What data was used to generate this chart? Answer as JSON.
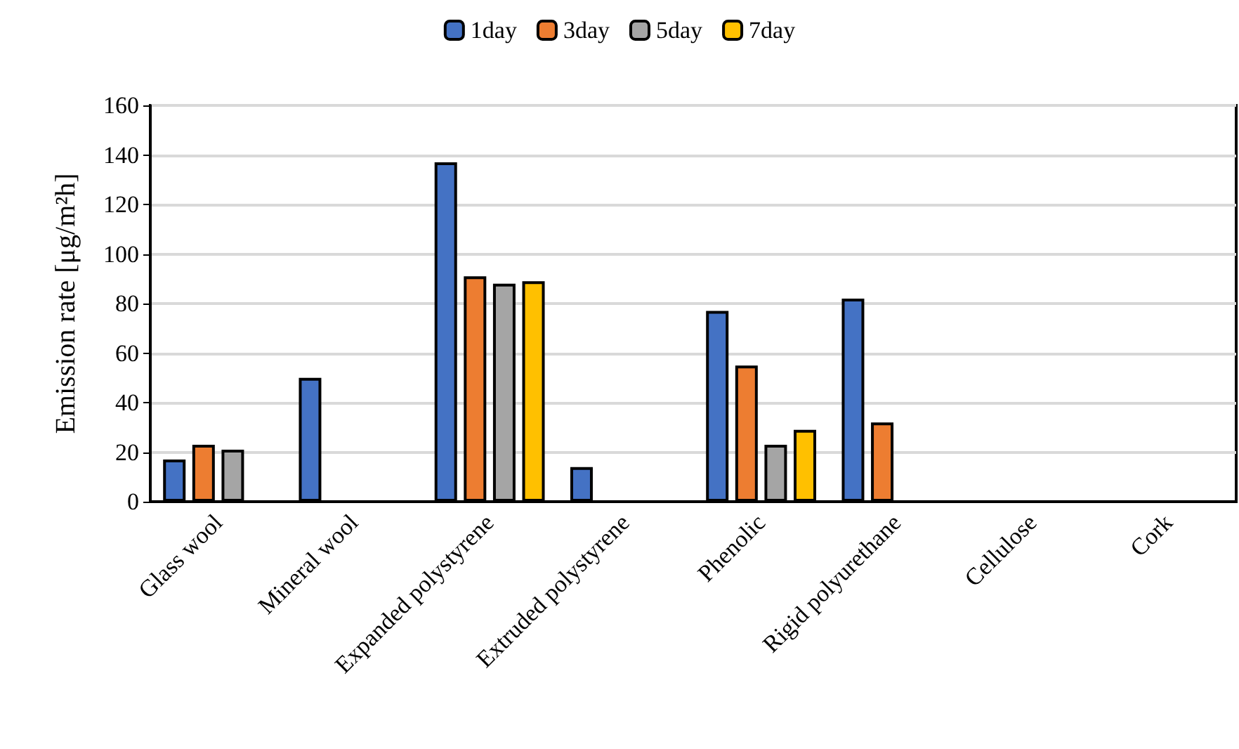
{
  "chart_data": {
    "type": "bar",
    "ylabel": "Emission rate [μg/m²h]",
    "categories": [
      "Glass wool",
      "Mineral wool",
      "Expanded polystyrene",
      "Extruded polystyrene",
      "Phenolic",
      "Rigid polyurethane",
      "Cellulose",
      "Cork"
    ],
    "series": [
      {
        "name": "1day",
        "color": "#4472c4",
        "values": [
          17,
          50,
          137,
          14,
          77,
          82,
          null,
          null
        ]
      },
      {
        "name": "3day",
        "color": "#ed7d31",
        "values": [
          23,
          null,
          91,
          null,
          55,
          32,
          null,
          null
        ]
      },
      {
        "name": "5day",
        "color": "#a5a5a5",
        "values": [
          21,
          null,
          88,
          null,
          23,
          null,
          null,
          null
        ]
      },
      {
        "name": "7day",
        "color": "#ffc000",
        "values": [
          null,
          null,
          89,
          null,
          29,
          null,
          null,
          null
        ]
      }
    ],
    "ylim": [
      0,
      160
    ],
    "yticks": [
      0,
      20,
      40,
      60,
      80,
      100,
      120,
      140,
      160
    ],
    "grid": "y",
    "legend": "top"
  }
}
